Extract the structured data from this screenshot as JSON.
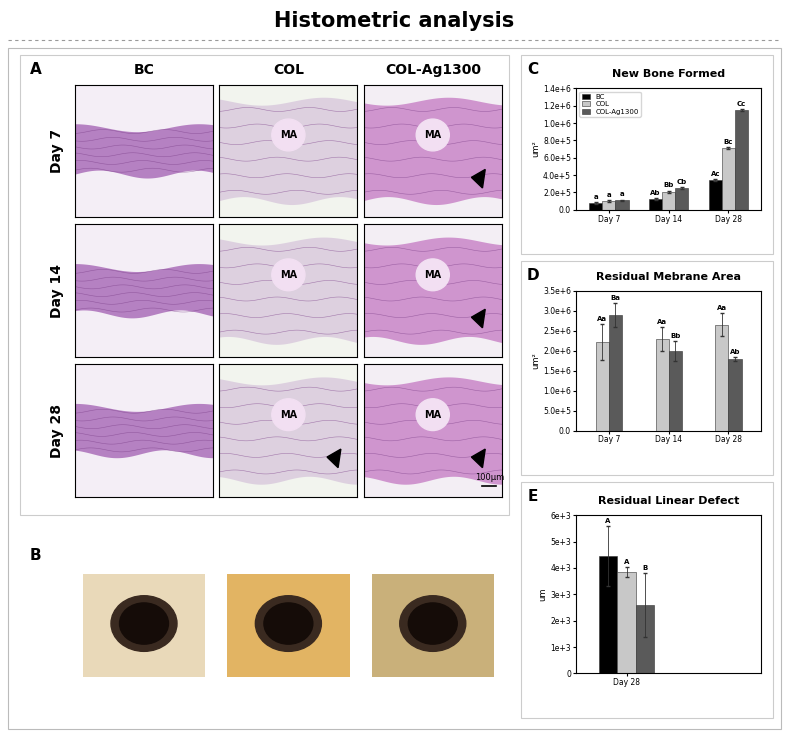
{
  "header": {
    "title": "Histometric analysis"
  },
  "panel_a": {
    "label": "A",
    "columns": [
      "BC",
      "COL",
      "COL-Ag1300"
    ],
    "rows": [
      {
        "label": "Day 7",
        "cells": [
          null,
          "MA",
          "MA"
        ]
      },
      {
        "label": "Day 14",
        "cells": [
          null,
          "MA",
          "MA"
        ]
      },
      {
        "label": "Day 28",
        "cells": [
          null,
          "MA",
          "MA"
        ]
      }
    ],
    "scale_bar": "100μm"
  },
  "panel_b": {
    "label": "B"
  },
  "chart_data": [
    {
      "type": "bar",
      "panel": "C",
      "title": "New Bone Formed",
      "y_label": "um²",
      "categories": [
        "Day 7",
        "Day 14",
        "Day 28"
      ],
      "series": [
        {
          "name": "BC",
          "color": "#000000",
          "values": [
            80000,
            120000,
            340000
          ],
          "errors": [
            8000,
            12000,
            10000
          ],
          "annotations": [
            "a",
            "Ab",
            "Ac"
          ]
        },
        {
          "name": "COL",
          "color": "#c8c8c8",
          "values": [
            100000,
            210000,
            710000
          ],
          "errors": [
            8000,
            12000,
            10000
          ],
          "annotations": [
            "a",
            "Bb",
            "Bc"
          ]
        },
        {
          "name": "COL-Ag1300",
          "color": "#5a5a5a",
          "values": [
            110000,
            250000,
            1150000
          ],
          "errors": [
            8000,
            12000,
            10000
          ],
          "annotations": [
            "a",
            "Cb",
            "Cc"
          ]
        }
      ],
      "ylim": [
        0,
        1400000
      ],
      "yticks": [
        {
          "value": 0,
          "label": "0.0"
        },
        {
          "value": 200000,
          "label": "2.0e+5"
        },
        {
          "value": 400000,
          "label": "4.0e+5"
        },
        {
          "value": 600000,
          "label": "6.0e+5"
        },
        {
          "value": 800000,
          "label": "8.0e+5"
        },
        {
          "value": 1000000,
          "label": "1.0e+6"
        },
        {
          "value": 1200000,
          "label": "1.2e+6"
        },
        {
          "value": 1400000,
          "label": "1.4e+6"
        }
      ],
      "legend": "upper left"
    },
    {
      "type": "bar",
      "panel": "D",
      "title": "Residual Mebrane Area",
      "y_label": "um²",
      "categories": [
        "Day 7",
        "Day 14",
        "Day 28"
      ],
      "series": [
        {
          "name": "COL",
          "color": "#c8c8c8",
          "values": [
            2220000,
            2300000,
            2650000
          ],
          "errors": [
            450000,
            300000,
            280000
          ],
          "annotations": [
            "Aa",
            "Aa",
            "Aa"
          ]
        },
        {
          "name": "COL-Ag1300",
          "color": "#5a5a5a",
          "values": [
            2900000,
            1980000,
            1800000
          ],
          "errors": [
            300000,
            250000,
            50000
          ],
          "annotations": [
            "Ba",
            "Bb",
            "Ab"
          ]
        }
      ],
      "ylim": [
        0,
        3500000
      ],
      "yticks": [
        {
          "value": 0,
          "label": "0.0"
        },
        {
          "value": 500000,
          "label": "5.0e+5"
        },
        {
          "value": 1000000,
          "label": "1.0e+6"
        },
        {
          "value": 1500000,
          "label": "1.5e+6"
        },
        {
          "value": 2000000,
          "label": "2.0e+6"
        },
        {
          "value": 2500000,
          "label": "2.5e+6"
        },
        {
          "value": 3000000,
          "label": "3.0e+6"
        },
        {
          "value": 3500000,
          "label": "3.5e+6"
        }
      ]
    },
    {
      "type": "bar",
      "panel": "E",
      "title": "Residual Linear Defect",
      "y_label": "um",
      "categories": [
        "Day 28"
      ],
      "series": [
        {
          "name": "BC",
          "color": "#000000",
          "values": [
            4450
          ],
          "errors": [
            1150
          ],
          "annotations": [
            "A"
          ]
        },
        {
          "name": "COL",
          "color": "#c8c8c8",
          "values": [
            3850
          ],
          "errors": [
            200
          ],
          "annotations": [
            "A"
          ]
        },
        {
          "name": "COL-Ag1300",
          "color": "#5a5a5a",
          "values": [
            2600
          ],
          "errors": [
            1200
          ],
          "annotations": [
            "B"
          ]
        }
      ],
      "ylim": [
        0,
        6000
      ],
      "yticks": [
        0,
        {
          "value": 1000,
          "label": "1e+3"
        },
        {
          "value": 2000,
          "label": "2e+3"
        },
        {
          "value": 3000,
          "label": "3e+3"
        },
        {
          "value": 4000,
          "label": "4e+3"
        },
        {
          "value": 5000,
          "label": "5e+3"
        },
        {
          "value": 6000,
          "label": "6e+3"
        }
      ]
    }
  ]
}
